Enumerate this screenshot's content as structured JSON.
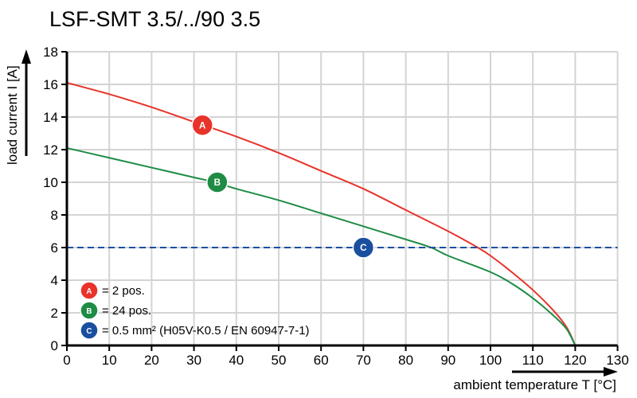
{
  "chart_data": {
    "type": "line",
    "title": "LSF-SMT 3.5/../90 3.5",
    "xlabel": "ambient temperature T [°C]",
    "ylabel": "load current I [A]",
    "xlim": [
      0,
      130
    ],
    "ylim": [
      0,
      18
    ],
    "xticks": [
      0,
      10,
      20,
      30,
      40,
      50,
      60,
      70,
      80,
      90,
      100,
      110,
      120,
      130
    ],
    "yticks": [
      0,
      2,
      4,
      6,
      8,
      10,
      12,
      14,
      16,
      18
    ],
    "grid": true,
    "legend_position": "bottom-left",
    "series": [
      {
        "marker": "A",
        "color": "#e8332a",
        "x": [
          0,
          10,
          20,
          30,
          40,
          50,
          60,
          70,
          80,
          90,
          97,
          100,
          105,
          110,
          115,
          118,
          120
        ],
        "y": [
          16.1,
          15.4,
          14.6,
          13.7,
          12.8,
          11.8,
          10.7,
          9.6,
          8.3,
          7.0,
          6.0,
          5.5,
          4.5,
          3.4,
          2.1,
          1.1,
          0
        ]
      },
      {
        "marker": "B",
        "color": "#1e8c45",
        "x": [
          0,
          10,
          20,
          30,
          35,
          40,
          50,
          60,
          70,
          80,
          86,
          90,
          100,
          105,
          110,
          115,
          118,
          120
        ],
        "y": [
          12.1,
          11.5,
          10.9,
          10.3,
          10.0,
          9.6,
          8.9,
          8.1,
          7.3,
          6.5,
          6.0,
          5.5,
          4.5,
          3.8,
          2.9,
          1.8,
          1.0,
          0
        ]
      },
      {
        "marker": "C",
        "color": "#1a4fa0",
        "dashed": true,
        "x": [
          0,
          130
        ],
        "y": [
          6,
          6
        ]
      }
    ],
    "markers": [
      {
        "label": "A",
        "x": 32,
        "y": 13.5,
        "color": "#e8332a"
      },
      {
        "label": "B",
        "x": 35.5,
        "y": 10,
        "color": "#1e8c45"
      },
      {
        "label": "C",
        "x": 70,
        "y": 6,
        "color": "#1a4fa0"
      }
    ],
    "legend": [
      {
        "label": "A",
        "text": "= 2 pos.",
        "color": "#e8332a"
      },
      {
        "label": "B",
        "text": "= 24 pos.",
        "color": "#1e8c45"
      },
      {
        "label": "C",
        "text": "= 0.5 mm² (H05V-K0.5 / EN 60947-7-1)",
        "color": "#1a4fa0"
      }
    ]
  }
}
